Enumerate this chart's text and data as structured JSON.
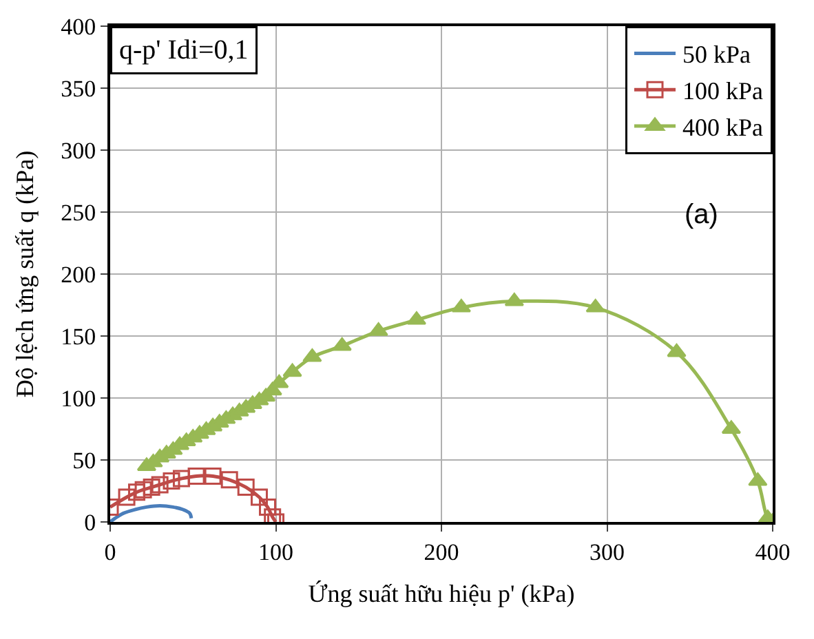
{
  "chart_data": {
    "type": "line",
    "xlabel": "Ứng suất hữu hiệu p' (kPa)",
    "ylabel": "Độ lệch ứng suất q (kPa)",
    "xlim": [
      0,
      400
    ],
    "ylim": [
      0,
      400
    ],
    "xticks": [
      0,
      100,
      200,
      300,
      400
    ],
    "yticks": [
      0,
      50,
      100,
      150,
      200,
      250,
      300,
      350,
      400
    ],
    "grid": true,
    "legend": "top right",
    "annotations": [
      "q-p' Idi=0,1",
      "(a)"
    ],
    "series": [
      {
        "name": "50 kPa",
        "color": "#4a7ebb",
        "marker": "none",
        "x": [
          0,
          3,
          8,
          15,
          22,
          30,
          38,
          44,
          48,
          49
        ],
        "values": [
          0,
          3,
          7,
          10,
          12,
          13,
          12,
          10,
          7,
          3
        ]
      },
      {
        "name": "100 kPa",
        "color": "#be4b48",
        "marker": "square",
        "x": [
          0,
          10,
          16,
          20,
          25,
          30,
          37,
          43,
          52,
          62,
          72,
          82,
          90,
          95,
          98,
          100
        ],
        "values": [
          12,
          20,
          24,
          26,
          28,
          30,
          33,
          35,
          37,
          37,
          34,
          28,
          20,
          12,
          4,
          0
        ]
      },
      {
        "name": "400 kPa",
        "color": "#98b954",
        "marker": "triangle",
        "x": [
          22,
          26,
          30,
          34,
          38,
          42,
          46,
          50,
          54,
          58,
          62,
          66,
          70,
          74,
          78,
          82,
          86,
          90,
          94,
          98,
          102,
          110,
          122,
          140,
          162,
          185,
          212,
          244,
          293,
          342,
          375,
          391,
          397,
          400
        ],
        "values": [
          45,
          48,
          52,
          55,
          58,
          62,
          65,
          68,
          71,
          74,
          77,
          80,
          83,
          86,
          89,
          92,
          95,
          98,
          101,
          106,
          112,
          121,
          133,
          142,
          154,
          163,
          173,
          178,
          173,
          137,
          75,
          33,
          3,
          0
        ]
      }
    ]
  }
}
